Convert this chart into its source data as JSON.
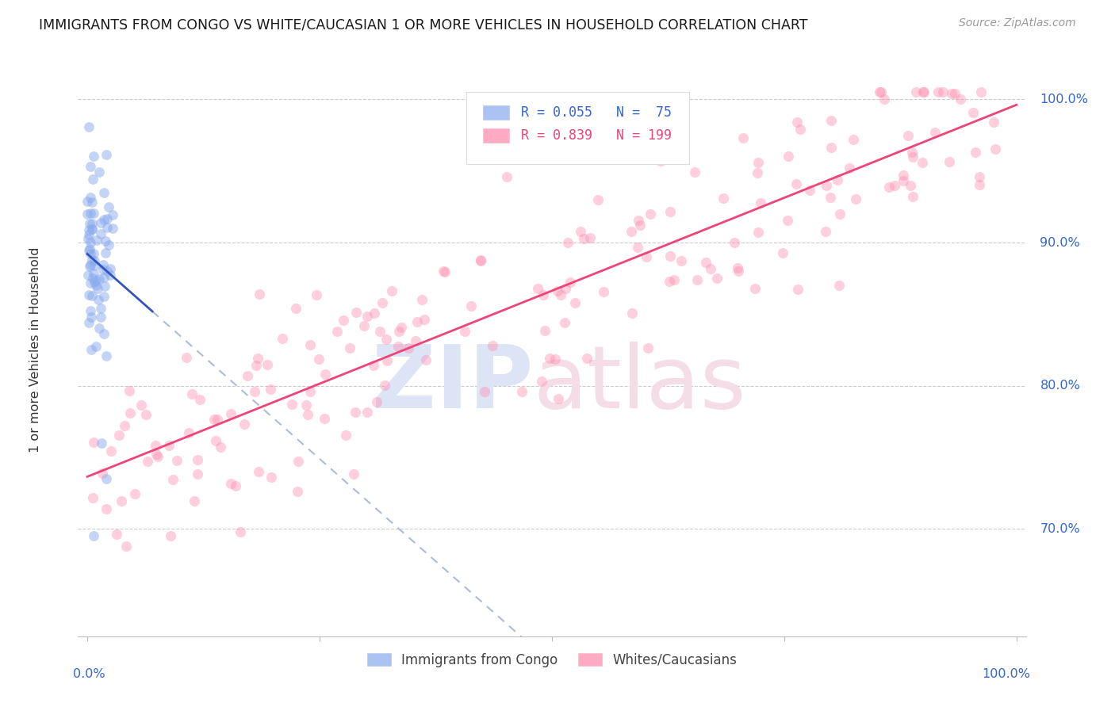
{
  "title": "IMMIGRANTS FROM CONGO VS WHITE/CAUCASIAN 1 OR MORE VEHICLES IN HOUSEHOLD CORRELATION CHART",
  "source": "Source: ZipAtlas.com",
  "ylabel": "1 or more Vehicles in Household",
  "ytick_labels": [
    "70.0%",
    "80.0%",
    "90.0%",
    "100.0%"
  ],
  "ytick_values": [
    0.7,
    0.8,
    0.9,
    1.0
  ],
  "xlim": [
    -0.01,
    1.01
  ],
  "ylim": [
    0.625,
    1.025
  ],
  "legend_R1": "0.055",
  "legend_N1": " 75",
  "legend_R2": "0.839",
  "legend_N2": "199",
  "blue_scatter_color": "#88aaee",
  "pink_scatter_color": "#ff88aa",
  "blue_line_solid_color": "#3355bb",
  "blue_line_dashed_color": "#aabbdd",
  "pink_line_color": "#ee4477",
  "background_color": "#ffffff",
  "grid_color": "#cccccc",
  "title_color": "#1a1a1a",
  "axis_label_color": "#3366cc",
  "watermark_zip_color": "#dde4f5",
  "watermark_atlas_color": "#f5dde8",
  "legend_box_color": "#ffffff",
  "legend_border_color": "#dddddd",
  "bottom_legend_text_color": "#444444",
  "seed_blue": 7,
  "seed_pink": 42,
  "N_blue": 75,
  "N_pink": 199
}
